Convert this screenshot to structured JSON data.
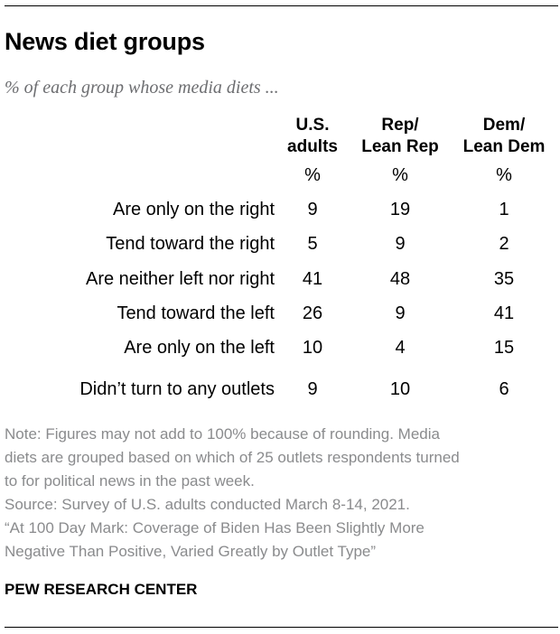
{
  "title": "News diet groups",
  "subtitle": "% of each group whose media diets ...",
  "chart_data": {
    "type": "table",
    "title": "News diet groups",
    "subtitle": "% of each group whose media diets ...",
    "unit": "%",
    "columns": [
      {
        "line1": "U.S.",
        "line2": "adults"
      },
      {
        "line1": "Rep/",
        "line2": "Lean Rep"
      },
      {
        "line1": "Dem/",
        "line2": "Lean Dem"
      }
    ],
    "rows": [
      {
        "label": "Are only on the right",
        "values": [
          9,
          19,
          1
        ]
      },
      {
        "label": "Tend toward the right",
        "values": [
          5,
          9,
          2
        ]
      },
      {
        "label": "Are neither left nor right",
        "values": [
          41,
          48,
          35
        ]
      },
      {
        "label": "Tend toward the left",
        "values": [
          26,
          9,
          41
        ]
      },
      {
        "label": "Are only on the left",
        "values": [
          10,
          4,
          15
        ]
      },
      {
        "label": "Didn’t turn to any outlets",
        "values": [
          9,
          10,
          6
        ]
      }
    ]
  },
  "note": [
    "Note: Figures may not add to 100% because of rounding. Media",
    "diets are grouped based on which of 25 outlets respondents turned",
    "to for political news in the past week.",
    "Source: Survey of U.S. adults conducted March 8-14, 2021.",
    "“At 100 Day Mark: Coverage of Biden Has Been Slightly More",
    "Negative Than Positive, Varied Greatly by Outlet Type”"
  ],
  "brand": "PEW RESEARCH CENTER"
}
